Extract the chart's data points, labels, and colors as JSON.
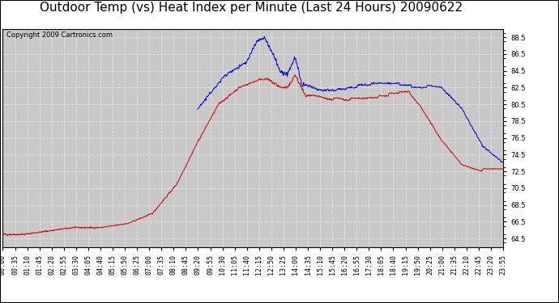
{
  "title": "Outdoor Temp (vs) Heat Index per Minute (Last 24 Hours) 20090622",
  "copyright": "Copyright 2009 Cartronics.com",
  "ylim": [
    63.5,
    89.5
  ],
  "yticks": [
    64.5,
    66.5,
    68.5,
    70.5,
    72.5,
    74.5,
    76.5,
    78.5,
    80.5,
    82.5,
    84.5,
    86.5,
    88.5
  ],
  "bg_color": "#c8c8c8",
  "grid_color": "#e8e8e8",
  "red_color": "#cc0000",
  "blue_color": "#0000cc",
  "title_fontsize": 11,
  "copyright_fontsize": 6,
  "tick_fontsize": 6,
  "xtick_labels": [
    "00:00",
    "00:35",
    "01:10",
    "01:45",
    "02:20",
    "02:55",
    "03:30",
    "04:05",
    "04:40",
    "05:15",
    "05:50",
    "06:25",
    "07:00",
    "07:35",
    "08:10",
    "08:45",
    "09:20",
    "09:55",
    "10:30",
    "11:05",
    "11:40",
    "12:15",
    "12:50",
    "13:25",
    "14:00",
    "14:35",
    "15:10",
    "15:45",
    "16:20",
    "16:55",
    "17:30",
    "18:05",
    "18:40",
    "19:15",
    "19:50",
    "20:25",
    "21:00",
    "21:35",
    "22:10",
    "22:45",
    "23:20",
    "23:55"
  ]
}
